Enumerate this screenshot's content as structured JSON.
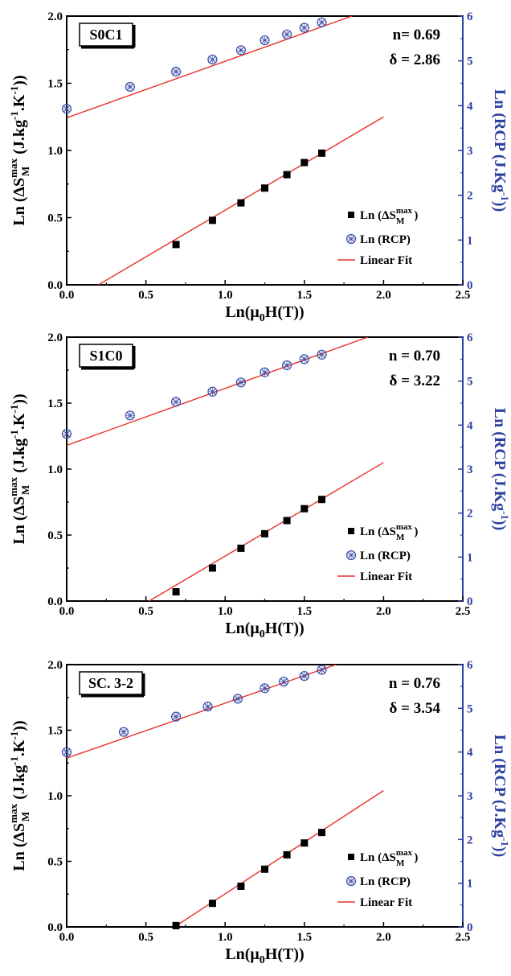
{
  "colors": {
    "fit": "#e8302b",
    "rcp": "#3a4fa8",
    "axis_right": "#2c3e9e",
    "square": "#000000"
  },
  "legend": {
    "ds_text": "Ln (ΔS",
    "ds_sup": "max",
    "ds_sub": "M",
    "ds_close": ")",
    "rcp": "Ln (RCP)",
    "fit": "Linear Fit"
  },
  "axes": {
    "xlabel_main": "Ln(μ",
    "xlabel_sub": "0",
    "xlabel_end": "H(T))",
    "ylabel_left_a": "Ln (ΔS",
    "ylabel_left_sup": "max",
    "ylabel_left_sub": "M",
    "ylabel_left_b": " (J.kg",
    "ylabel_left_sup2": "-1",
    "ylabel_left_c": ".K",
    "ylabel_left_sup3": "-1",
    "ylabel_left_d": "))",
    "ylabel_right_a": "Ln (RCP (J.Kg",
    "ylabel_right_sup": "-1",
    "ylabel_right_b": "))",
    "xticks": [
      "0.0",
      "0.5",
      "1.0",
      "1.5",
      "2.0",
      "2.5"
    ],
    "yticks_left": [
      "0.0",
      "0.5",
      "1.0",
      "1.5",
      "2.0"
    ],
    "yticks_right": [
      "0",
      "1",
      "2",
      "3",
      "4",
      "5",
      "6"
    ]
  },
  "chart_data": [
    {
      "type": "scatter",
      "panel_label": "S0C1",
      "n_text": "n= 0.69",
      "delta_text": "δ = 2.86",
      "xlim": [
        0,
        2.5
      ],
      "ylim_left": [
        0,
        2
      ],
      "ylim_right": [
        0,
        6
      ],
      "ds_points": {
        "x": [
          0.69,
          0.92,
          1.1,
          1.25,
          1.39,
          1.5,
          1.61
        ],
        "y": [
          0.3,
          0.48,
          0.61,
          0.72,
          0.82,
          0.91,
          0.98
        ]
      },
      "rcp_points": {
        "x": [
          0.0,
          0.4,
          0.69,
          0.92,
          1.1,
          1.25,
          1.39,
          1.5,
          1.61
        ],
        "y": [
          3.93,
          4.42,
          4.76,
          5.03,
          5.24,
          5.46,
          5.59,
          5.74,
          5.86
        ]
      },
      "ds_fit": [
        [
          0.2,
          0.0
        ],
        [
          2.0,
          1.25
        ]
      ],
      "rcp_fit": [
        [
          0.0,
          3.73
        ],
        [
          1.8,
          6.0
        ]
      ]
    },
    {
      "type": "scatter",
      "panel_label": "S1C0",
      "n_text": "n = 0.70",
      "delta_text": "δ = 3.22",
      "xlim": [
        0,
        2.5
      ],
      "ylim_left": [
        0,
        2
      ],
      "ylim_right": [
        0,
        6
      ],
      "ds_points": {
        "x": [
          0.69,
          0.92,
          1.1,
          1.25,
          1.39,
          1.5,
          1.61
        ],
        "y": [
          0.07,
          0.25,
          0.4,
          0.51,
          0.61,
          0.7,
          0.77
        ]
      },
      "rcp_points": {
        "x": [
          0.0,
          0.4,
          0.69,
          0.92,
          1.1,
          1.25,
          1.39,
          1.5,
          1.61
        ],
        "y": [
          3.8,
          4.22,
          4.53,
          4.76,
          4.97,
          5.2,
          5.36,
          5.5,
          5.6
        ]
      },
      "ds_fit": [
        [
          0.52,
          0.0
        ],
        [
          2.0,
          1.05
        ]
      ],
      "rcp_fit": [
        [
          0.0,
          3.54
        ],
        [
          1.9,
          6.0
        ]
      ]
    },
    {
      "type": "scatter",
      "panel_label": "SC. 3-2",
      "n_text": "n = 0.76",
      "delta_text": "δ = 3.54",
      "xlim": [
        0,
        2.5
      ],
      "ylim_left": [
        0,
        2
      ],
      "ylim_right": [
        0,
        6
      ],
      "ds_points": {
        "x": [
          0.69,
          0.92,
          1.1,
          1.25,
          1.39,
          1.5,
          1.61
        ],
        "y": [
          0.01,
          0.18,
          0.31,
          0.44,
          0.55,
          0.64,
          0.72
        ]
      },
      "rcp_points": {
        "x": [
          0.0,
          0.36,
          0.69,
          0.89,
          1.08,
          1.25,
          1.37,
          1.5,
          1.61
        ],
        "y": [
          4.0,
          4.46,
          4.81,
          5.04,
          5.22,
          5.46,
          5.61,
          5.74,
          5.88
        ]
      },
      "ds_fit": [
        [
          0.68,
          0.0
        ],
        [
          2.0,
          1.04
        ]
      ],
      "rcp_fit": [
        [
          0.0,
          3.86
        ],
        [
          1.7,
          6.0
        ]
      ]
    }
  ]
}
